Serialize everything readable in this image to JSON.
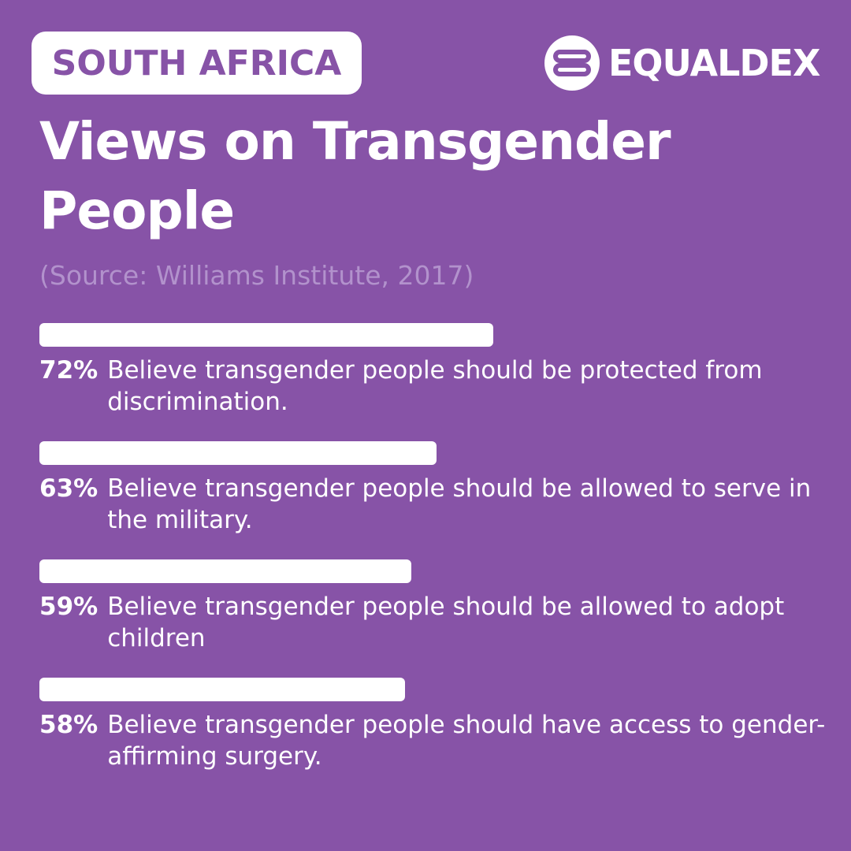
{
  "header": {
    "country": "SOUTH AFRICA",
    "brand_name": "EQUALDEX",
    "brand_logo_icon": "equaldex-logo-icon"
  },
  "title": "Views on Transgender People",
  "source": "(Source: Williams Institute, 2017)",
  "colors": {
    "background": "#8753a7",
    "bar": "#ffffff",
    "text": "#ffffff",
    "source_text": "#b292cc"
  },
  "chart_data": {
    "type": "bar",
    "orientation": "horizontal",
    "unit": "%",
    "categories": [
      "Believe transgender people should be protected from discrimination.",
      "Believe transgender people should be allowed to serve in the military.",
      "Believe transgender people should be allowed to adopt children",
      "Believe transgender people should have access to gender-affirming surgery."
    ],
    "values": [
      72,
      63,
      59,
      58
    ],
    "value_labels": [
      "72%",
      "63%",
      "59%",
      "58%"
    ],
    "grid": false,
    "legend": "none"
  }
}
